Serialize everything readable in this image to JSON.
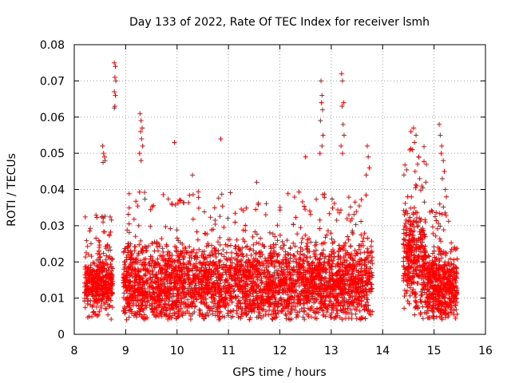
{
  "chart_data": {
    "type": "scatter",
    "title": "Day 133 of 2022, Rate Of TEC Index for receiver lsmh",
    "xlabel": "GPS time / hours",
    "ylabel": "ROTI / TECUs",
    "xlim": [
      8,
      16
    ],
    "ylim": [
      0,
      0.08
    ],
    "grid": true,
    "marker": "+",
    "color": "#ff0000",
    "x_ticks": [
      8,
      9,
      10,
      11,
      12,
      13,
      14,
      15,
      16
    ],
    "x_tick_labels": [
      "8",
      "9",
      "10",
      "11",
      "12",
      "13",
      "14",
      "15",
      "16"
    ],
    "y_ticks": [
      0,
      0.01,
      0.02,
      0.03,
      0.04,
      0.05,
      0.06,
      0.07,
      0.08
    ],
    "y_tick_labels": [
      "0",
      "0.01",
      "0.02",
      "0.03",
      "0.04",
      "0.05",
      "0.06",
      "0.07",
      "0.08"
    ],
    "series": [
      {
        "name": "lsmh",
        "segments": [
          [
            8.2,
            8.95
          ],
          [
            8.95,
            13.8
          ],
          [
            14.4,
            14.85
          ],
          [
            14.85,
            15.45
          ]
        ],
        "x": [
          8.78,
          8.8,
          8.79,
          8.81,
          8.78,
          8.8,
          8.79,
          8.78,
          8.55,
          8.57,
          8.59,
          8.6,
          8.56,
          9.28,
          9.3,
          9.32,
          9.29,
          9.31,
          9.33,
          9.27,
          9.3,
          12.8,
          12.82,
          12.81,
          12.83,
          12.79,
          12.84,
          12.82,
          12.78,
          13.2,
          13.22,
          13.24,
          13.21,
          13.23,
          13.25,
          13.19,
          13.22,
          10.85,
          11.55,
          10.3,
          9.95,
          12.5,
          14.55,
          14.6,
          14.65,
          14.62,
          14.58,
          14.7,
          14.68,
          14.63,
          14.72,
          14.66,
          15.1,
          15.12,
          15.15,
          15.14,
          15.18,
          15.2,
          15.16,
          15.22,
          15.24,
          15.11,
          13.7,
          13.72,
          13.74,
          13.68
        ],
        "y": [
          0.075,
          0.074,
          0.071,
          0.07,
          0.067,
          0.066,
          0.063,
          0.0625,
          0.052,
          0.05,
          0.049,
          0.048,
          0.0475,
          0.061,
          0.059,
          0.057,
          0.056,
          0.054,
          0.052,
          0.05,
          0.048,
          0.07,
          0.066,
          0.064,
          0.062,
          0.059,
          0.055,
          0.052,
          0.05,
          0.072,
          0.07,
          0.064,
          0.063,
          0.058,
          0.055,
          0.052,
          0.05,
          0.054,
          0.042,
          0.044,
          0.053,
          0.049,
          0.056,
          0.057,
          0.055,
          0.053,
          0.051,
          0.049,
          0.047,
          0.045,
          0.043,
          0.041,
          0.058,
          0.055,
          0.052,
          0.05,
          0.048,
          0.045,
          0.043,
          0.04,
          0.038,
          0.036,
          0.052,
          0.049,
          0.046,
          0.044
        ],
        "bands": [
          {
            "x_range": [
              8.2,
              8.75
            ],
            "y_center": 0.014,
            "y_spread": 0.012,
            "approx_points": 420
          },
          {
            "x_range": [
              8.95,
              13.8
            ],
            "y_center": 0.014,
            "y_spread": 0.016,
            "approx_points": 3300
          },
          {
            "x_range": [
              14.4,
              14.85
            ],
            "y_center": 0.02,
            "y_spread": 0.02,
            "approx_points": 380
          },
          {
            "x_range": [
              14.85,
              15.45
            ],
            "y_center": 0.013,
            "y_spread": 0.014,
            "approx_points": 520
          }
        ]
      }
    ]
  }
}
